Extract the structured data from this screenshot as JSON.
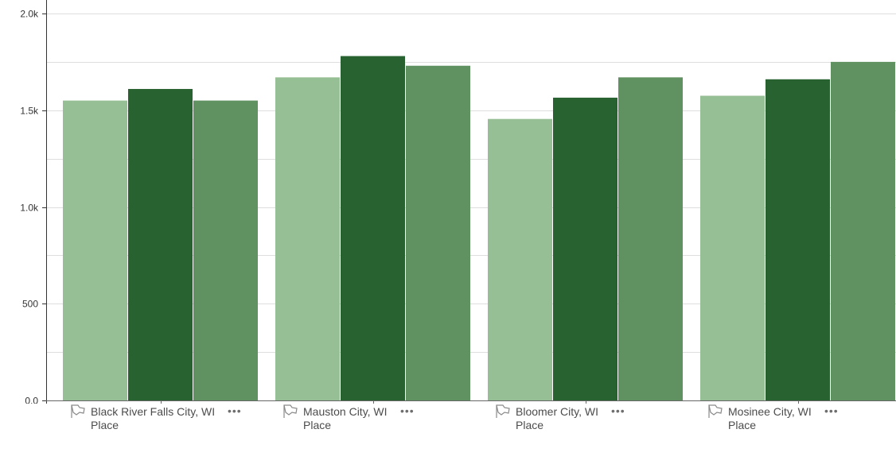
{
  "chart_data": {
    "type": "bar",
    "categories": [
      "Black River Falls City, WI",
      "Mauston City, WI",
      "Bloomer City, WI",
      "Mosinee City, WI"
    ],
    "category_subtitle": "Place",
    "series": [
      {
        "values": [
          1550,
          1670,
          1455,
          1575
        ],
        "color": "#97bf95"
      },
      {
        "values": [
          1610,
          1780,
          1565,
          1660
        ],
        "color": "#286231"
      },
      {
        "values": [
          1550,
          1730,
          1670,
          1750
        ],
        "color": "#609160"
      }
    ],
    "ylim": [
      0,
      2000
    ],
    "yticks": [
      {
        "value": 0,
        "label": "0.0"
      },
      {
        "value": 500,
        "label": "500"
      },
      {
        "value": 1000,
        "label": "1.0k"
      },
      {
        "value": 1500,
        "label": "1.5k"
      },
      {
        "value": 2000,
        "label": "2.0k"
      }
    ],
    "grid": true,
    "legend": "none"
  },
  "icons": {
    "category": "place-flag-icon",
    "more": "more-options-icon"
  },
  "more_glyph": "•••"
}
